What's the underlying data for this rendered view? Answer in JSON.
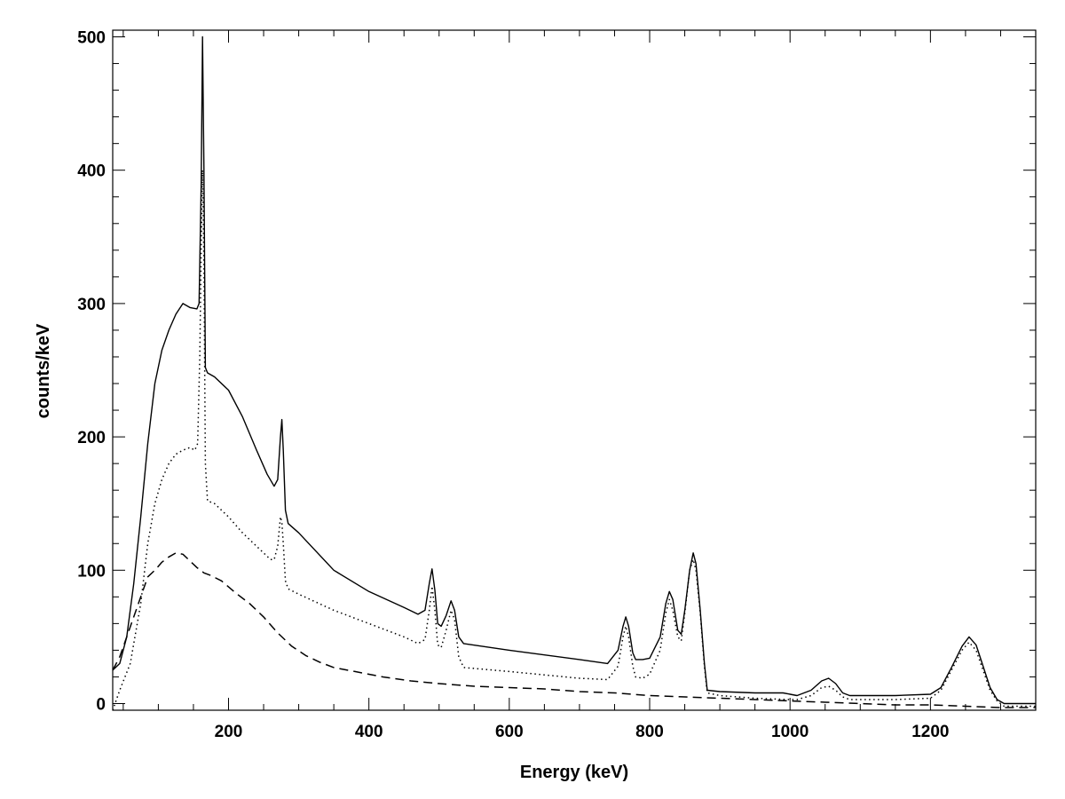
{
  "chart_data": {
    "type": "line",
    "title": "",
    "xlabel": "Energy (keV)",
    "ylabel": "counts/keV",
    "xlim": [
      35,
      1350
    ],
    "ylim": [
      -5,
      505
    ],
    "xticks": [
      200,
      400,
      600,
      800,
      1000,
      1200
    ],
    "yticks": [
      0,
      100,
      200,
      300,
      400,
      500
    ],
    "grid": false,
    "legend": "none",
    "series": [
      {
        "style": "solid",
        "points": [
          [
            35,
            25
          ],
          [
            45,
            30
          ],
          [
            55,
            50
          ],
          [
            65,
            90
          ],
          [
            75,
            140
          ],
          [
            85,
            195
          ],
          [
            95,
            240
          ],
          [
            105,
            265
          ],
          [
            115,
            280
          ],
          [
            125,
            292
          ],
          [
            135,
            300
          ],
          [
            145,
            297
          ],
          [
            155,
            296
          ],
          [
            158,
            300
          ],
          [
            161,
            390
          ],
          [
            163,
            500
          ],
          [
            165,
            400
          ],
          [
            167,
            252
          ],
          [
            170,
            248
          ],
          [
            180,
            245
          ],
          [
            200,
            235
          ],
          [
            220,
            215
          ],
          [
            240,
            190
          ],
          [
            255,
            172
          ],
          [
            265,
            163
          ],
          [
            270,
            168
          ],
          [
            274,
            200
          ],
          [
            276,
            213
          ],
          [
            278,
            190
          ],
          [
            281,
            145
          ],
          [
            285,
            135
          ],
          [
            300,
            128
          ],
          [
            350,
            100
          ],
          [
            400,
            84
          ],
          [
            450,
            72
          ],
          [
            470,
            67
          ],
          [
            480,
            70
          ],
          [
            486,
            90
          ],
          [
            490,
            101
          ],
          [
            494,
            85
          ],
          [
            498,
            60
          ],
          [
            503,
            58
          ],
          [
            510,
            66
          ],
          [
            517,
            77
          ],
          [
            522,
            70
          ],
          [
            528,
            50
          ],
          [
            535,
            45
          ],
          [
            600,
            40
          ],
          [
            700,
            33
          ],
          [
            740,
            30
          ],
          [
            755,
            40
          ],
          [
            762,
            58
          ],
          [
            766,
            65
          ],
          [
            770,
            58
          ],
          [
            776,
            38
          ],
          [
            780,
            33
          ],
          [
            790,
            33
          ],
          [
            800,
            34
          ],
          [
            815,
            50
          ],
          [
            823,
            75
          ],
          [
            828,
            84
          ],
          [
            833,
            78
          ],
          [
            840,
            55
          ],
          [
            845,
            52
          ],
          [
            850,
            70
          ],
          [
            857,
            100
          ],
          [
            862,
            113
          ],
          [
            866,
            105
          ],
          [
            872,
            70
          ],
          [
            878,
            30
          ],
          [
            882,
            10
          ],
          [
            900,
            9
          ],
          [
            950,
            8
          ],
          [
            990,
            8
          ],
          [
            1000,
            7
          ],
          [
            1010,
            6
          ],
          [
            1030,
            10
          ],
          [
            1045,
            17
          ],
          [
            1055,
            19
          ],
          [
            1065,
            15
          ],
          [
            1075,
            8
          ],
          [
            1085,
            6
          ],
          [
            1150,
            6
          ],
          [
            1200,
            7
          ],
          [
            1215,
            12
          ],
          [
            1230,
            27
          ],
          [
            1245,
            43
          ],
          [
            1255,
            50
          ],
          [
            1265,
            44
          ],
          [
            1275,
            28
          ],
          [
            1285,
            12
          ],
          [
            1295,
            3
          ],
          [
            1305,
            0
          ],
          [
            1320,
            0
          ],
          [
            1350,
            0
          ]
        ]
      },
      {
        "style": "dotted",
        "points": [
          [
            35,
            -5
          ],
          [
            45,
            10
          ],
          [
            60,
            30
          ],
          [
            75,
            75
          ],
          [
            85,
            120
          ],
          [
            95,
            150
          ],
          [
            105,
            168
          ],
          [
            115,
            180
          ],
          [
            125,
            187
          ],
          [
            135,
            190
          ],
          [
            145,
            192
          ],
          [
            152,
            190
          ],
          [
            156,
            195
          ],
          [
            159,
            260
          ],
          [
            161,
            340
          ],
          [
            163,
            400
          ],
          [
            165,
            330
          ],
          [
            167,
            180
          ],
          [
            170,
            152
          ],
          [
            180,
            150
          ],
          [
            200,
            140
          ],
          [
            220,
            128
          ],
          [
            240,
            118
          ],
          [
            260,
            108
          ],
          [
            265,
            108
          ],
          [
            270,
            118
          ],
          [
            274,
            140
          ],
          [
            276,
            136
          ],
          [
            278,
            120
          ],
          [
            281,
            92
          ],
          [
            285,
            86
          ],
          [
            300,
            82
          ],
          [
            350,
            70
          ],
          [
            400,
            60
          ],
          [
            450,
            50
          ],
          [
            470,
            45
          ],
          [
            480,
            48
          ],
          [
            486,
            70
          ],
          [
            490,
            88
          ],
          [
            494,
            70
          ],
          [
            498,
            44
          ],
          [
            503,
            42
          ],
          [
            510,
            55
          ],
          [
            517,
            70
          ],
          [
            522,
            63
          ],
          [
            528,
            35
          ],
          [
            535,
            27
          ],
          [
            600,
            24
          ],
          [
            700,
            19
          ],
          [
            740,
            18
          ],
          [
            755,
            28
          ],
          [
            762,
            50
          ],
          [
            766,
            58
          ],
          [
            770,
            50
          ],
          [
            776,
            28
          ],
          [
            780,
            20
          ],
          [
            790,
            19
          ],
          [
            800,
            22
          ],
          [
            815,
            40
          ],
          [
            823,
            68
          ],
          [
            828,
            78
          ],
          [
            833,
            70
          ],
          [
            840,
            50
          ],
          [
            845,
            47
          ],
          [
            850,
            68
          ],
          [
            857,
            100
          ],
          [
            862,
            108
          ],
          [
            866,
            100
          ],
          [
            872,
            68
          ],
          [
            878,
            28
          ],
          [
            882,
            8
          ],
          [
            900,
            6
          ],
          [
            950,
            4
          ],
          [
            1000,
            3
          ],
          [
            1010,
            3
          ],
          [
            1030,
            6
          ],
          [
            1045,
            12
          ],
          [
            1055,
            13
          ],
          [
            1065,
            10
          ],
          [
            1075,
            5
          ],
          [
            1085,
            3
          ],
          [
            1150,
            3
          ],
          [
            1200,
            4
          ],
          [
            1215,
            10
          ],
          [
            1230,
            25
          ],
          [
            1245,
            40
          ],
          [
            1255,
            46
          ],
          [
            1265,
            40
          ],
          [
            1275,
            25
          ],
          [
            1285,
            10
          ],
          [
            1295,
            2
          ],
          [
            1305,
            -2
          ],
          [
            1350,
            -2
          ]
        ]
      },
      {
        "style": "dashed",
        "points": [
          [
            35,
            25
          ],
          [
            45,
            35
          ],
          [
            55,
            50
          ],
          [
            65,
            65
          ],
          [
            75,
            80
          ],
          [
            85,
            95
          ],
          [
            95,
            100
          ],
          [
            105,
            106
          ],
          [
            115,
            110
          ],
          [
            125,
            113
          ],
          [
            135,
            112
          ],
          [
            145,
            107
          ],
          [
            155,
            102
          ],
          [
            165,
            98
          ],
          [
            175,
            96
          ],
          [
            190,
            92
          ],
          [
            210,
            83
          ],
          [
            230,
            75
          ],
          [
            250,
            65
          ],
          [
            270,
            53
          ],
          [
            290,
            43
          ],
          [
            310,
            36
          ],
          [
            330,
            31
          ],
          [
            350,
            27
          ],
          [
            380,
            24
          ],
          [
            420,
            20
          ],
          [
            460,
            17
          ],
          [
            500,
            15
          ],
          [
            550,
            13
          ],
          [
            600,
            12
          ],
          [
            650,
            11
          ],
          [
            700,
            9
          ],
          [
            750,
            8
          ],
          [
            800,
            6
          ],
          [
            850,
            5
          ],
          [
            900,
            4
          ],
          [
            950,
            3
          ],
          [
            1000,
            2
          ],
          [
            1050,
            1
          ],
          [
            1100,
            0
          ],
          [
            1150,
            -1
          ],
          [
            1200,
            -1
          ],
          [
            1250,
            -2
          ],
          [
            1300,
            -3
          ],
          [
            1350,
            -3
          ]
        ]
      }
    ]
  }
}
